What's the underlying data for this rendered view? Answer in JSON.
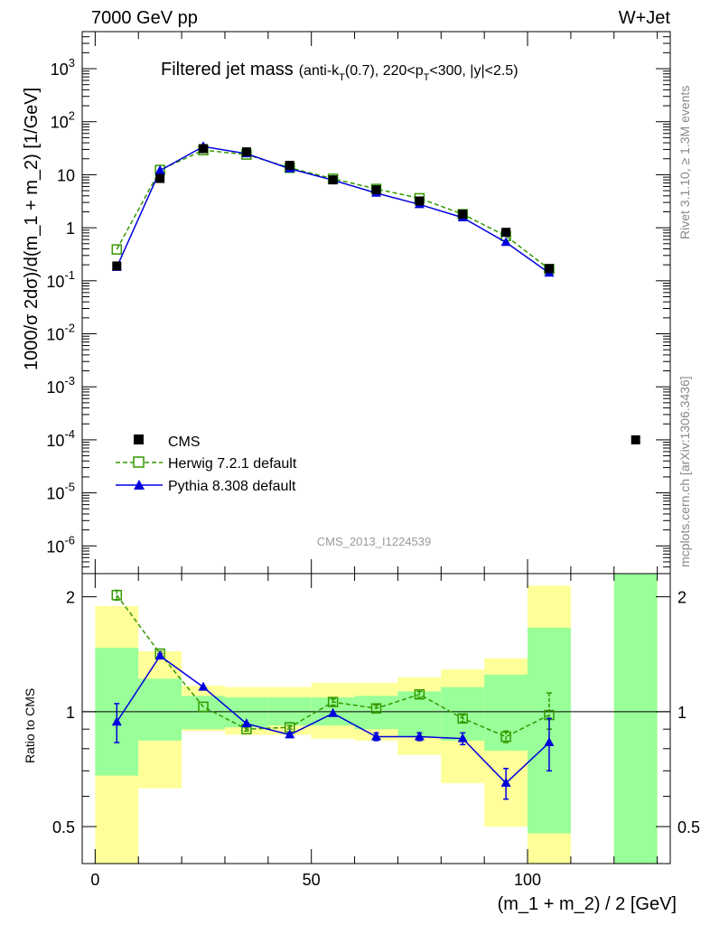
{
  "header": {
    "left": "7000 GeV pp",
    "right": "W+Jet"
  },
  "plot_title": {
    "main": "Filtered jet mass",
    "sub": "(anti-k",
    "sub_T": "T",
    "sub_mid": "(0.7), 220<p",
    "sub_T2": "T",
    "sub_end": "<300, |y|<2.5)"
  },
  "side_labels": {
    "rivet": "Rivet 3.1.10, ≥ 1.3M events",
    "mcplots": "mcplots.cern.ch [arXiv:1306.3436]"
  },
  "watermark": "CMS_2013_I1224539",
  "legend": {
    "cms": "CMS",
    "herwig": "Herwig 7.2.1 default",
    "pythia": "Pythia 8.308 default"
  },
  "colors": {
    "cms": "#000000",
    "herwig": "#339900",
    "pythia": "#0000dd",
    "band_inner": "#99ff99",
    "band_outer": "#ffff99"
  },
  "chart_data": [
    {
      "type": "scatter",
      "panel": "main",
      "ylabel": "1000/σ 2dσ)/d(m_1 + m_2) [1/GeV]",
      "yscale": "log",
      "ylim": [
        3e-07,
        5000
      ],
      "xlim": [
        -3,
        133
      ],
      "ytick_labels": [
        "10^-6",
        "10^-5",
        "10^-4",
        "10^-3",
        "10^-2",
        "10^-1",
        "1",
        "10",
        "10^2",
        "10^3"
      ],
      "series": [
        {
          "name": "CMS",
          "x": [
            5,
            15,
            25,
            35,
            45,
            55,
            65,
            75,
            85,
            95,
            105,
            125
          ],
          "y": [
            0.19,
            8.5,
            31,
            27,
            15,
            8,
            5.2,
            3.2,
            1.8,
            0.82,
            0.17,
            0.0001
          ]
        },
        {
          "name": "Herwig 7.2.1 default",
          "x": [
            5,
            15,
            25,
            35,
            45,
            55,
            65,
            75,
            85,
            95,
            105
          ],
          "y": [
            0.39,
            12.3,
            29,
            24,
            13.5,
            8.4,
            5.4,
            3.6,
            1.8,
            0.7,
            0.166
          ]
        },
        {
          "name": "Pythia 8.308 default",
          "x": [
            5,
            15,
            25,
            35,
            45,
            55,
            65,
            75,
            85,
            95,
            105
          ],
          "y": [
            0.18,
            12,
            34,
            25,
            13,
            7.9,
            4.5,
            2.75,
            1.55,
            0.53,
            0.14
          ]
        }
      ]
    },
    {
      "type": "scatter",
      "panel": "ratio",
      "xlabel": "(m_1 + m_2) / 2 [GeV]",
      "ylabel": "Ratio to CMS",
      "yscale": "log",
      "ylim": [
        0.4,
        2.3
      ],
      "xlim": [
        -3,
        133
      ],
      "xtick_labels": [
        "0",
        "50",
        "100"
      ],
      "ytick_labels": [
        "0.5",
        "1",
        "2"
      ],
      "bands": {
        "x_low": [
          0,
          10,
          20,
          30,
          40,
          50,
          60,
          70,
          80,
          90,
          100,
          120
        ],
        "x_high": [
          10,
          20,
          30,
          40,
          50,
          60,
          70,
          80,
          90,
          100,
          110,
          130
        ],
        "inner_low": [
          0.68,
          0.84,
          0.9,
          0.91,
          0.92,
          0.92,
          0.9,
          0.86,
          0.84,
          0.79,
          0.48,
          0.3
        ],
        "inner_high": [
          1.47,
          1.22,
          1.1,
          1.09,
          1.09,
          1.09,
          1.1,
          1.13,
          1.16,
          1.25,
          1.66,
          5
        ],
        "outer_low": [
          0.3,
          0.63,
          0.89,
          0.87,
          0.87,
          0.85,
          0.84,
          0.77,
          0.65,
          0.5,
          0.3,
          0.3
        ],
        "outer_high": [
          1.89,
          1.44,
          1.17,
          1.16,
          1.16,
          1.19,
          1.19,
          1.23,
          1.29,
          1.38,
          2.14,
          5
        ]
      },
      "series": [
        {
          "name": "Herwig 7.2.1 default",
          "x": [
            5,
            15,
            25,
            35,
            45,
            55,
            65,
            75,
            85,
            95,
            105
          ],
          "y": [
            2.02,
            1.42,
            1.03,
            0.9,
            0.91,
            1.06,
            1.02,
            1.11,
            0.96,
            0.86,
            0.98
          ],
          "err_low": [
            0.06,
            0.02,
            0.01,
            0.01,
            0.01,
            0.02,
            0.02,
            0.02,
            0.02,
            0.03,
            0.08
          ],
          "err_high": [
            0.06,
            0.02,
            0.01,
            0.01,
            0.01,
            0.02,
            0.02,
            0.02,
            0.02,
            0.03,
            0.14
          ]
        },
        {
          "name": "Pythia 8.308 default",
          "x": [
            5,
            15,
            25,
            35,
            45,
            55,
            65,
            75,
            85,
            95,
            105
          ],
          "y": [
            0.94,
            1.4,
            1.16,
            0.93,
            0.87,
            0.99,
            0.86,
            0.86,
            0.85,
            0.65,
            0.83
          ],
          "err_low": [
            0.11,
            0.02,
            0.01,
            0.01,
            0.01,
            0.01,
            0.02,
            0.02,
            0.03,
            0.06,
            0.13
          ],
          "err_high": [
            0.11,
            0.02,
            0.01,
            0.01,
            0.01,
            0.01,
            0.02,
            0.02,
            0.03,
            0.06,
            0.13
          ]
        }
      ]
    }
  ]
}
